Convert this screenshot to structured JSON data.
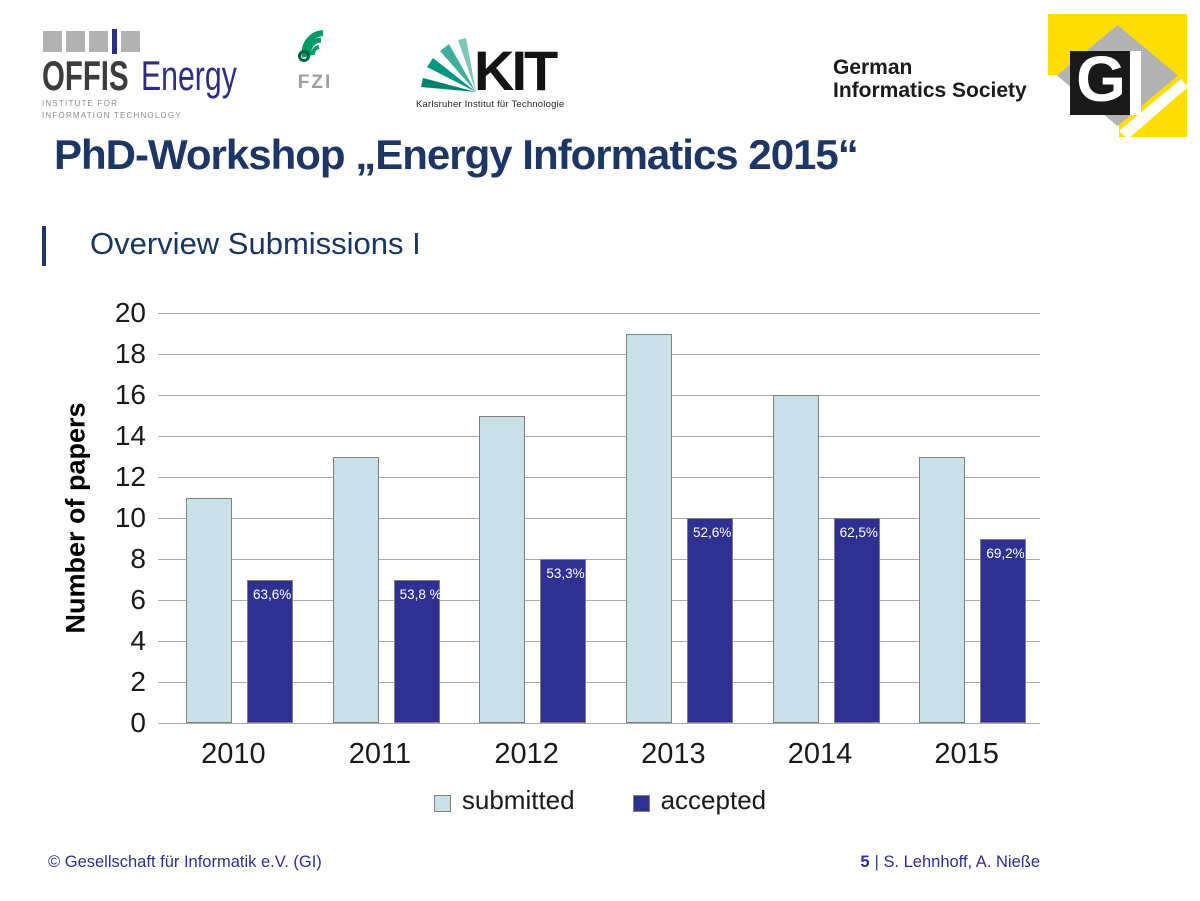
{
  "header": {
    "offis": {
      "word1": "OFFIS",
      "word2": "Energy",
      "sub_line1": "INSTITUTE FOR",
      "sub_line2": "INFORMATION TECHNOLOGY"
    },
    "fzi": {
      "label": "FZI"
    },
    "kit": {
      "label": "KIT",
      "tagline": "Karlsruher Institut für Technologie"
    },
    "gis": {
      "line1": "German",
      "line2": "Informatics Society"
    },
    "gi_logo": {
      "letter": "G"
    }
  },
  "title": "PhD-Workshop „Energy Informatics 2015“",
  "subtitle": "Overview Submissions I",
  "chart_data": {
    "type": "bar",
    "title": "",
    "categories": [
      "2010",
      "2011",
      "2012",
      "2013",
      "2014",
      "2015"
    ],
    "series": [
      {
        "name": "submitted",
        "color": "#c7e1e7",
        "values": [
          11,
          13,
          15,
          19,
          16,
          13
        ]
      },
      {
        "name": "accepted",
        "color": "#2e3192",
        "values": [
          7,
          7,
          8,
          10,
          10,
          9
        ],
        "bar_labels": [
          "63,6%",
          "53,8 %",
          "53,3%",
          "52,6%",
          "62,5%",
          "69,2%"
        ]
      }
    ],
    "xlabel": "",
    "ylabel": "Number of papers",
    "ylim": [
      0,
      20
    ],
    "ytick_step": 2,
    "grid": true,
    "legend_position": "bottom",
    "colors": {
      "gridline": "#a9a9a9",
      "bar_border": "#7f7f7f",
      "label_text": "#ffffff"
    }
  },
  "footer": {
    "left": "© Gesellschaft für Informatik e.V. (GI)",
    "page": "5",
    "right": "| S. Lehnhoff, A. Nieße"
  }
}
